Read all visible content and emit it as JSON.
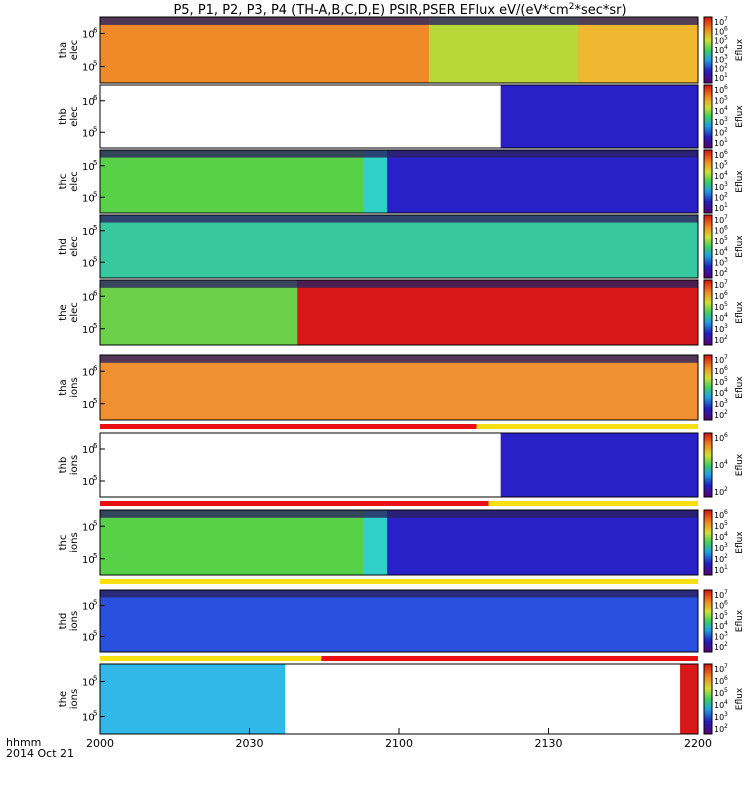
{
  "chart_data": {
    "type": "heatmap",
    "title": "P5, P1, P2, P3, P4 (TH-A,B,C,D,E) PSIR,PSER EFlux eV/(eV*cm",
    "title_sup": "2",
    "title_tail": "*sec*sr)",
    "colorbar_label": "Eflux",
    "xlabel_time": "hhmm",
    "xlabel_date": "2014 Oct 21",
    "x_ticks": [
      "2000",
      "2030",
      "2100",
      "2130",
      "2200"
    ],
    "x_range": [
      "2000",
      "2200"
    ],
    "panels": [
      {
        "label1": "tha",
        "label2": "elec",
        "y_ticks": [
          "6",
          "5"
        ],
        "cbar_ticks": [
          "7",
          "6",
          "5",
          "4",
          "3",
          "2",
          "1"
        ],
        "segments": [
          {
            "from": 0,
            "to": 0.55,
            "color": "#f08a28"
          },
          {
            "from": 0.55,
            "to": 0.8,
            "color": "#b8d838"
          },
          {
            "from": 0.8,
            "to": 1,
            "color": "#f0b830"
          }
        ],
        "fill": "#f0a030",
        "state_bar": null
      },
      {
        "label1": "thb",
        "label2": "elec",
        "y_ticks": [
          "6",
          "5"
        ],
        "cbar_ticks": [
          "6",
          "5",
          "4",
          "3",
          "2",
          "1"
        ],
        "segments": [
          {
            "from": 0,
            "to": 0.67,
            "color": "#ffffff"
          },
          {
            "from": 0.67,
            "to": 1,
            "color": "#2a20c8"
          }
        ],
        "fill": "#ffffff",
        "state_bar": null
      },
      {
        "label1": "thc",
        "label2": "elec",
        "y_ticks": [
          "5",
          "5"
        ],
        "cbar_ticks": [
          "6",
          "5",
          "4",
          "3",
          "2",
          "1"
        ],
        "segments": [
          {
            "from": 0,
            "to": 0.44,
            "color": "#58d048"
          },
          {
            "from": 0.44,
            "to": 0.48,
            "color": "#30d0c8"
          },
          {
            "from": 0.48,
            "to": 1,
            "color": "#2a20c8"
          }
        ],
        "fill": "#58d048",
        "state_bar": null
      },
      {
        "label1": "thd",
        "label2": "elec",
        "y_ticks": [
          "5",
          "5"
        ],
        "cbar_ticks": [
          "7",
          "6",
          "5",
          "4",
          "3",
          "2"
        ],
        "segments": [
          {
            "from": 0,
            "to": 1,
            "color": "#38c8a0"
          }
        ],
        "fill": "#38c8a0",
        "state_bar": null
      },
      {
        "label1": "the",
        "label2": "elec",
        "y_ticks": [
          "6",
          "5"
        ],
        "cbar_ticks": [
          "7",
          "6",
          "5",
          "4",
          "3",
          "2"
        ],
        "segments": [
          {
            "from": 0,
            "to": 0.33,
            "color": "#6cd048"
          },
          {
            "from": 0.33,
            "to": 1,
            "color": "#d81818"
          }
        ],
        "fill": "#d81818",
        "state_bar": null
      },
      {
        "label1": "tha",
        "label2": "ions",
        "y_ticks": [
          "6",
          "5"
        ],
        "cbar_ticks": [
          "7",
          "6",
          "5",
          "4",
          "3",
          "2"
        ],
        "segments": [
          {
            "from": 0,
            "to": 1,
            "color": "#f09030"
          }
        ],
        "fill": "#f09030",
        "state_bar": "red-to-yellow"
      },
      {
        "label1": "thb",
        "label2": "ions",
        "y_ticks": [
          "6",
          "5"
        ],
        "cbar_ticks": [
          "6",
          "4",
          "2"
        ],
        "segments": [
          {
            "from": 0,
            "to": 0.67,
            "color": "#ffffff"
          },
          {
            "from": 0.67,
            "to": 1,
            "color": "#2a20c8"
          }
        ],
        "fill": "#ffffff",
        "state_bar": "red"
      },
      {
        "label1": "thc",
        "label2": "ions",
        "y_ticks": [
          "5",
          "5"
        ],
        "cbar_ticks": [
          "6",
          "5",
          "4",
          "3",
          "2",
          "1"
        ],
        "segments": [
          {
            "from": 0,
            "to": 0.44,
            "color": "#58d048"
          },
          {
            "from": 0.44,
            "to": 0.48,
            "color": "#30d0c8"
          },
          {
            "from": 0.48,
            "to": 1,
            "color": "#2a20c8"
          }
        ],
        "fill": "#58d048",
        "state_bar": "yellow"
      },
      {
        "label1": "thd",
        "label2": "ions",
        "y_ticks": [
          "5",
          "5"
        ],
        "cbar_ticks": [
          "7",
          "6",
          "5",
          "4",
          "3",
          "2"
        ],
        "segments": [
          {
            "from": 0,
            "to": 1,
            "color": "#2a50e0"
          }
        ],
        "fill": "#2a50e0",
        "state_bar": "yellow-to-red"
      },
      {
        "label1": "the",
        "label2": "ions",
        "y_ticks": [
          "5",
          "5"
        ],
        "cbar_ticks": [
          "7",
          "6",
          "5",
          "4",
          "3",
          "2"
        ],
        "segments": [
          {
            "from": 0,
            "to": 0.31,
            "color": "#30b8e8"
          },
          {
            "from": 0.31,
            "to": 0.97,
            "color": "#ffffff"
          },
          {
            "from": 0.97,
            "to": 1,
            "color": "#d81818"
          }
        ],
        "fill": "#ffffff",
        "state_bar": null
      }
    ]
  }
}
